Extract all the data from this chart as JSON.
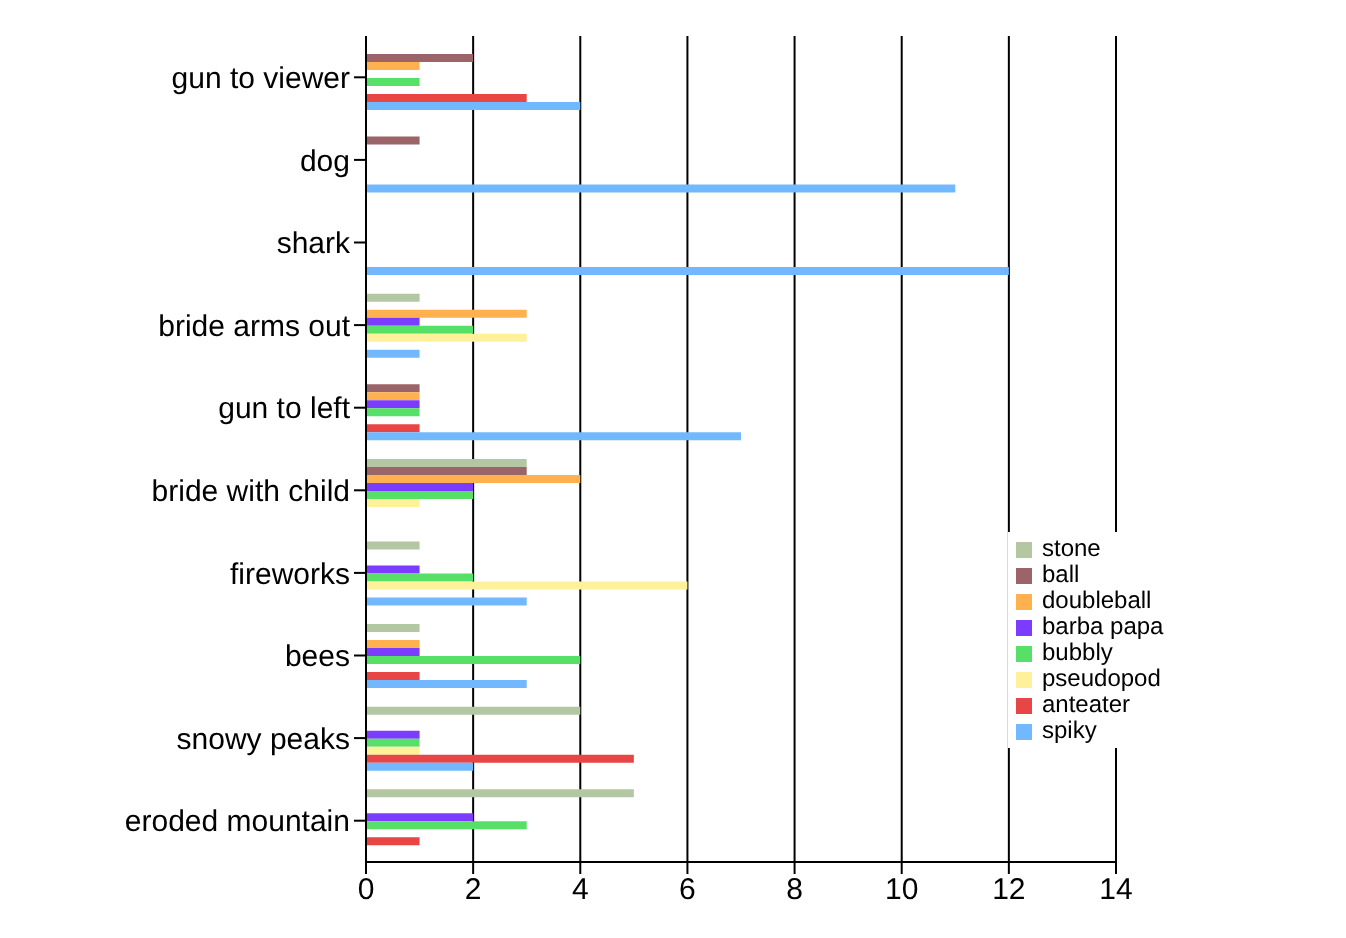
{
  "chart_data": {
    "type": "bar",
    "orientation": "horizontal",
    "categories": [
      "gun to viewer",
      "dog",
      "shark",
      "bride arms out",
      "gun to left",
      "bride with child",
      "fireworks",
      "bees",
      "snowy peaks",
      "eroded mountain"
    ],
    "series": [
      {
        "name": "stone",
        "color": "#b3c7a3",
        "values": [
          0,
          0,
          0,
          1,
          0,
          3,
          1,
          1,
          4,
          5
        ]
      },
      {
        "name": "ball",
        "color": "#9a6468",
        "values": [
          2,
          1,
          0,
          0,
          1,
          3,
          0,
          0,
          0,
          0
        ]
      },
      {
        "name": "doubleball",
        "color": "#ffb14f",
        "values": [
          1,
          0,
          0,
          3,
          1,
          4,
          0,
          1,
          0,
          0
        ]
      },
      {
        "name": "barba papa",
        "color": "#7b3cff",
        "values": [
          0,
          0,
          0,
          1,
          1,
          2,
          1,
          1,
          1,
          2
        ]
      },
      {
        "name": "bubbly",
        "color": "#57e067",
        "values": [
          1,
          0,
          0,
          2,
          1,
          2,
          2,
          4,
          1,
          3
        ]
      },
      {
        "name": "pseudopod",
        "color": "#fff09a",
        "values": [
          0,
          0,
          0,
          3,
          0,
          1,
          6,
          0,
          1,
          0
        ]
      },
      {
        "name": "anteater",
        "color": "#e84545",
        "values": [
          3,
          0,
          0,
          0,
          1,
          0,
          0,
          1,
          5,
          1
        ]
      },
      {
        "name": "spiky",
        "color": "#72b8ff",
        "values": [
          4,
          11,
          12,
          1,
          7,
          0,
          3,
          3,
          2,
          0
        ]
      }
    ],
    "xlim": [
      0,
      14
    ],
    "xticks": [
      0,
      2,
      4,
      6,
      8,
      10,
      12,
      14
    ],
    "grid": "x",
    "legend": "right"
  }
}
